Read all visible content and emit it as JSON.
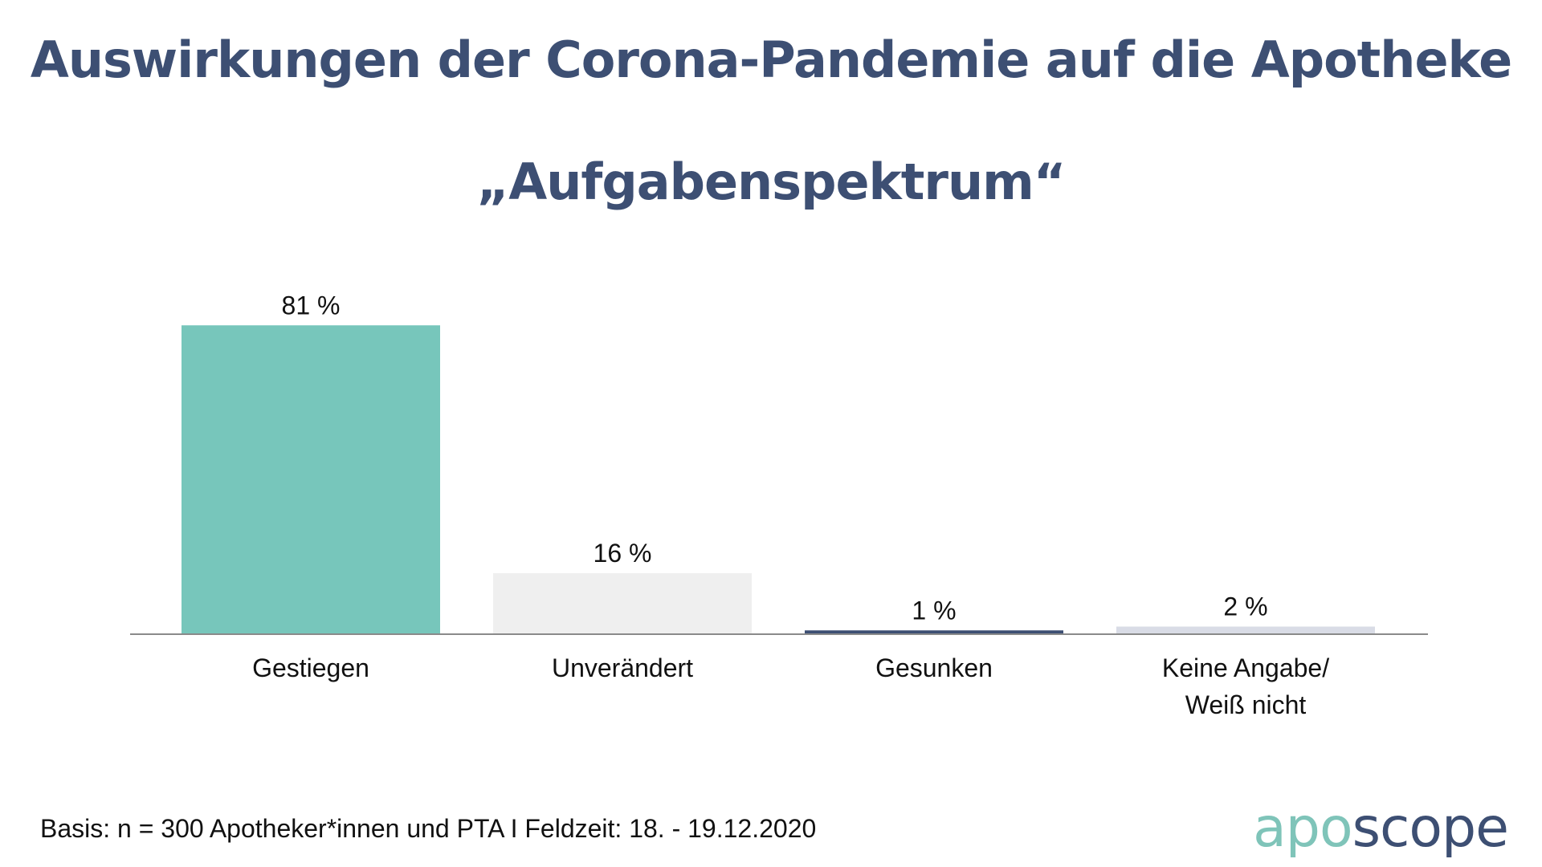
{
  "header": {
    "title": "Auswirkungen der Corona-Pandemie auf die Apotheke",
    "subtitle": "„Aufgabenspektrum“"
  },
  "chart_data": {
    "type": "bar",
    "categories": [
      "Gestiegen",
      "Unverändert",
      "Gesunken",
      "Keine Angabe/\nWeiß nicht"
    ],
    "values": [
      81,
      16,
      1,
      2
    ],
    "value_labels": [
      "81 %",
      "16 %",
      "1 %",
      "2 %"
    ],
    "colors": [
      "#77c6bb",
      "#efefef",
      "#3d4f73",
      "#d9dce6"
    ],
    "ylim": [
      0,
      100
    ],
    "grid": false,
    "legend": "none",
    "title": "Auswirkungen der Corona-Pandemie auf die Apotheke",
    "subtitle": "„Aufgabenspektrum“",
    "xlabel": "",
    "ylabel": ""
  },
  "footer": {
    "note": "Basis: n = 300 Apotheker*innen und PTA I Feldzeit: 18. - 19.12.2020",
    "logo_part1": "apo",
    "logo_part2": "scope",
    "logo_color_1": "#7fc4b9",
    "logo_color_2": "#3d4f73"
  }
}
